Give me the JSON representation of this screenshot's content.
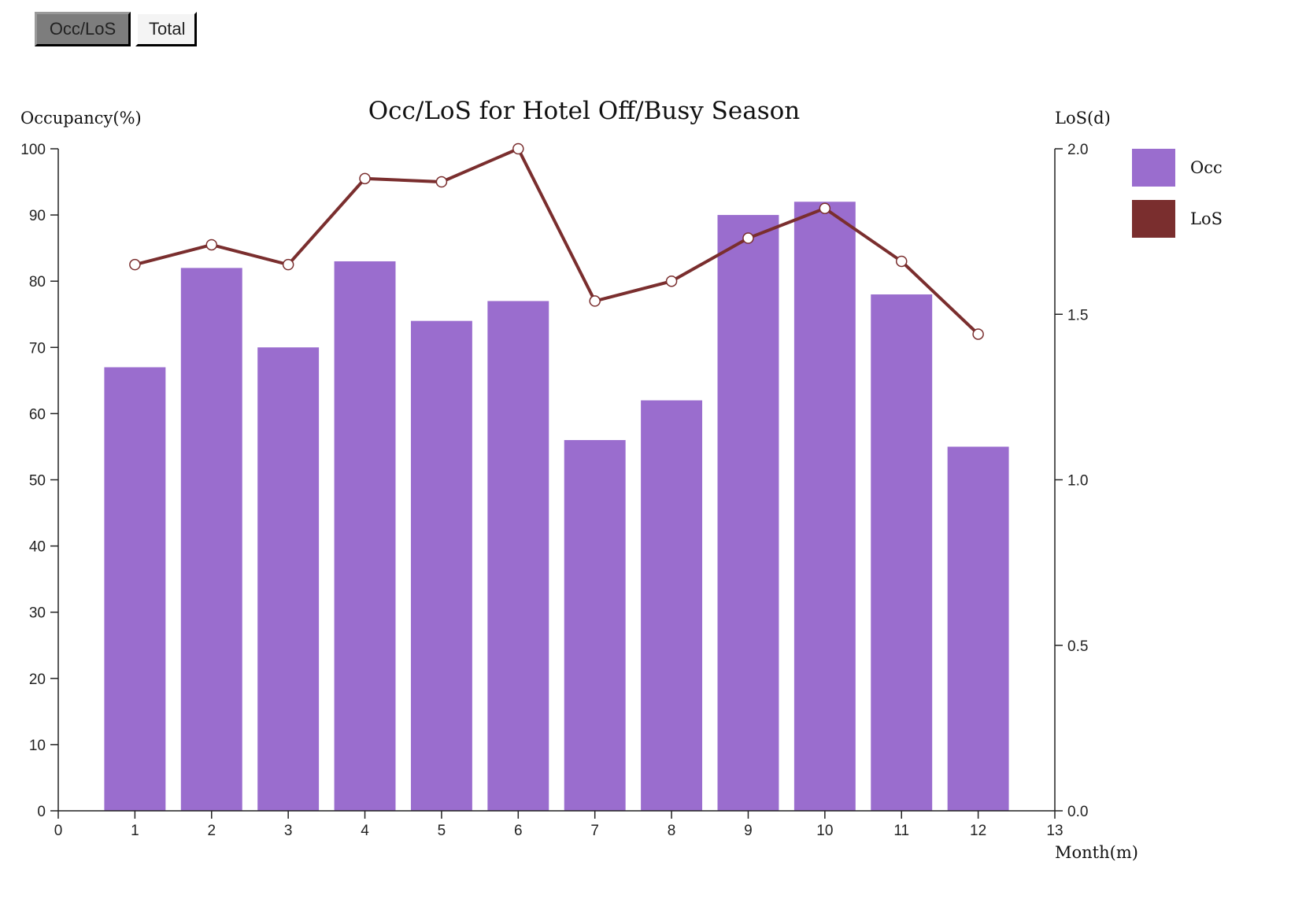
{
  "toolbar": {
    "buttons": [
      {
        "label": "Occ/LoS",
        "active": true
      },
      {
        "label": "Total",
        "active": false
      }
    ]
  },
  "chart_data": {
    "type": "bar",
    "title": "Occ/LoS for Hotel Off/Busy Season",
    "xlabel": "Month(m)",
    "ylabel_left": "Occupancy(%)",
    "ylabel_right": "LoS(d)",
    "xlim": [
      0,
      13
    ],
    "x_ticks": [
      0,
      1,
      2,
      3,
      4,
      5,
      6,
      7,
      8,
      9,
      10,
      11,
      12,
      13
    ],
    "ylim_left": [
      0,
      100
    ],
    "y_ticks_left": [
      0,
      10,
      20,
      30,
      40,
      50,
      60,
      70,
      80,
      90,
      100
    ],
    "ylim_right": [
      0.0,
      2.0
    ],
    "y_ticks_right": [
      "0.0",
      "0.5",
      "1.0",
      "1.5",
      "2.0"
    ],
    "grid": false,
    "legend_position": "right-top",
    "categories": [
      1,
      2,
      3,
      4,
      5,
      6,
      7,
      8,
      9,
      10,
      11,
      12
    ],
    "series": [
      {
        "name": "Occ",
        "type": "bar",
        "axis": "left",
        "color": "#9a6dce",
        "values": [
          67,
          82,
          70,
          83,
          74,
          77,
          56,
          62,
          90,
          92,
          78,
          55
        ]
      },
      {
        "name": "LoS",
        "type": "line",
        "axis": "right",
        "color": "#7a2e2e",
        "values": [
          1.65,
          1.71,
          1.65,
          1.91,
          1.9,
          2.0,
          1.54,
          1.6,
          1.73,
          1.82,
          1.66,
          1.44
        ]
      }
    ]
  }
}
